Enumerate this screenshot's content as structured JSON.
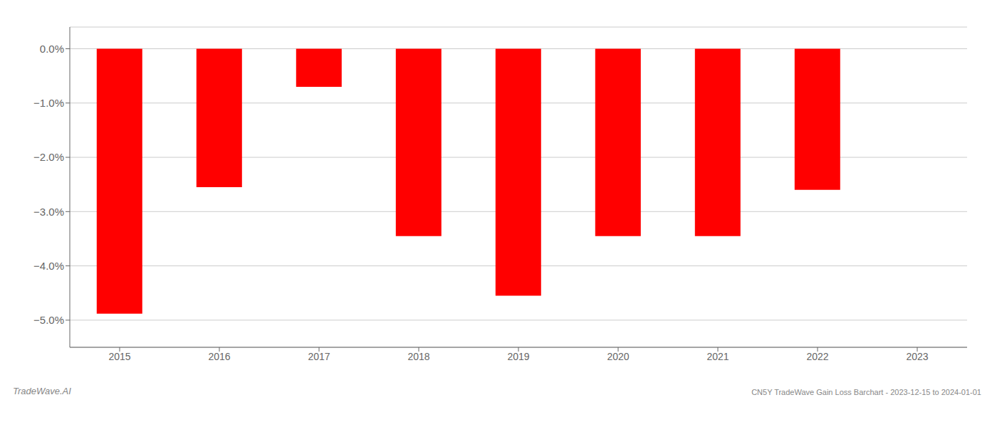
{
  "chart_data": {
    "type": "bar",
    "categories": [
      "2015",
      "2016",
      "2017",
      "2018",
      "2019",
      "2020",
      "2021",
      "2022",
      "2023"
    ],
    "values": [
      -4.88,
      -2.55,
      -0.7,
      -3.45,
      -4.55,
      -3.45,
      -3.45,
      -2.6,
      0.0
    ],
    "color": "#FF0000",
    "ylim": [
      -5.5,
      0.4
    ],
    "yticks": [
      {
        "value": 0.0,
        "label": "0.0%"
      },
      {
        "value": -1.0,
        "label": "−1.0%"
      },
      {
        "value": -2.0,
        "label": "−2.0%"
      },
      {
        "value": -3.0,
        "label": "−3.0%"
      },
      {
        "value": -4.0,
        "label": "−4.0%"
      },
      {
        "value": -5.0,
        "label": "−5.0%"
      }
    ],
    "grid": true,
    "annotations": [
      "TradeWave.AI",
      "CN5Y TradeWave Gain Loss Barchart - 2023-12-15 to 2024-01-01"
    ]
  }
}
